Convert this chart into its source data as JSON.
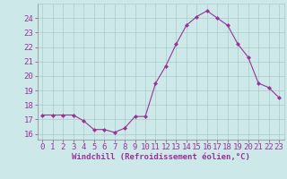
{
  "x": [
    0,
    1,
    2,
    3,
    4,
    5,
    6,
    7,
    8,
    9,
    10,
    11,
    12,
    13,
    14,
    15,
    16,
    17,
    18,
    19,
    20,
    21,
    22,
    23
  ],
  "y": [
    17.3,
    17.3,
    17.3,
    17.3,
    16.9,
    16.3,
    16.3,
    16.1,
    16.4,
    17.2,
    17.2,
    19.5,
    20.7,
    22.2,
    23.5,
    24.1,
    24.5,
    24.0,
    23.5,
    22.2,
    21.3,
    19.5,
    19.2,
    18.5
  ],
  "line_color": "#993399",
  "marker": "D",
  "marker_size": 2.0,
  "bg_color": "#cce8e8",
  "grid_color": "#aacccc",
  "xlabel": "Windchill (Refroidissement éolien,°C)",
  "xlabel_color": "#993399",
  "tick_color": "#993399",
  "label_color": "#993399",
  "ylim": [
    15.6,
    25.0
  ],
  "xlim": [
    -0.5,
    23.5
  ],
  "yticks": [
    16,
    17,
    18,
    19,
    20,
    21,
    22,
    23,
    24
  ],
  "xticks": [
    0,
    1,
    2,
    3,
    4,
    5,
    6,
    7,
    8,
    9,
    10,
    11,
    12,
    13,
    14,
    15,
    16,
    17,
    18,
    19,
    20,
    21,
    22,
    23
  ],
  "tick_fontsize": 6.5,
  "xlabel_fontsize": 6.5
}
